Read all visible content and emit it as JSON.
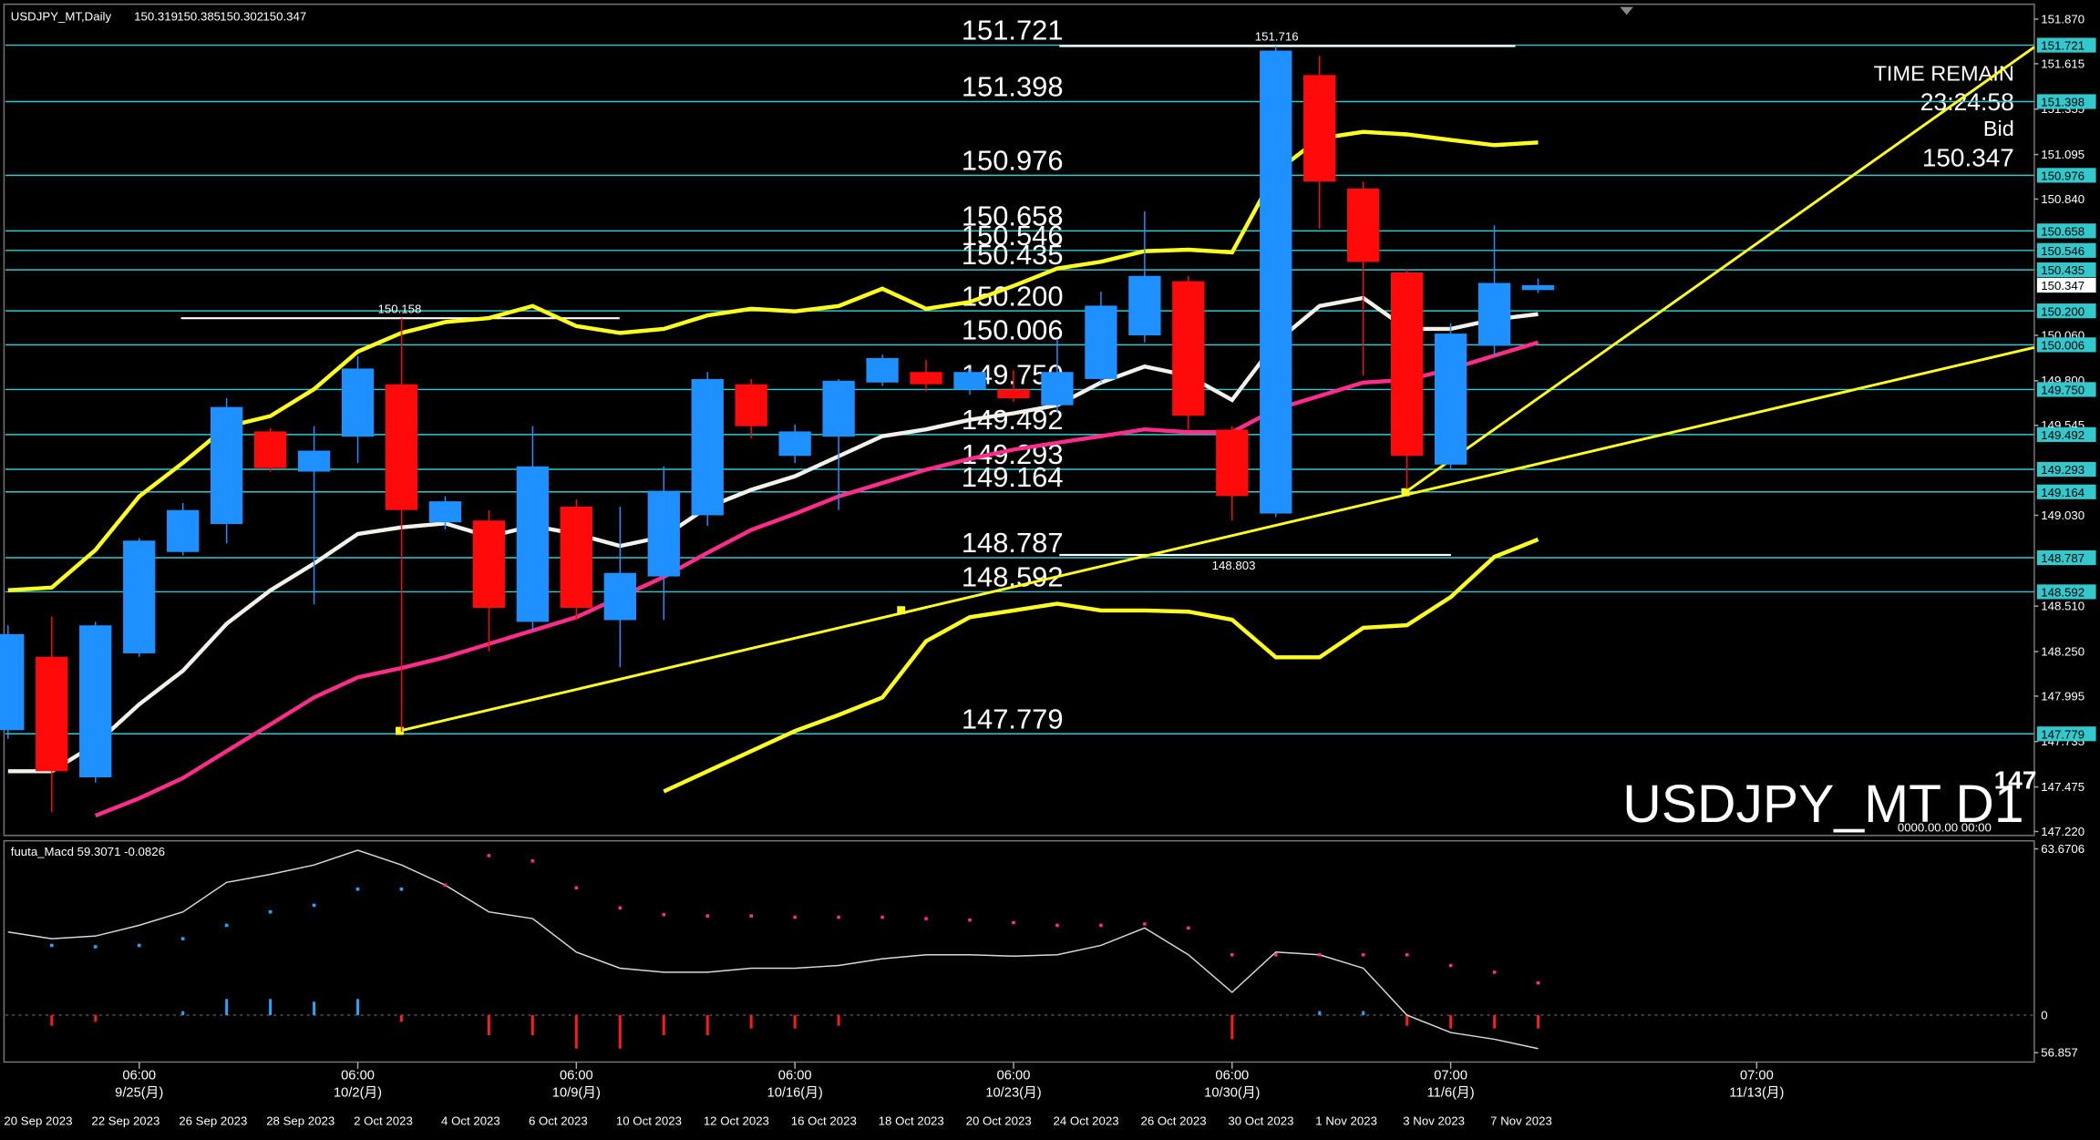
{
  "header": "USDJPY_MT,Daily",
  "info": {
    "time_label": "TIME REMAIN",
    "time_value": "23:24:58",
    "bid_label": "Bid",
    "watermark": "USDJPY_MT D1",
    "corner_number": "147",
    "corner_time": "0000.00.00 00:00"
  },
  "chart_data": [
    {
      "type": "candlestick",
      "categories": [
        "20 Sep 2023",
        null,
        "22 Sep 2023",
        null,
        "26 Sep 2023",
        null,
        "28 Sep 2023",
        null,
        "2 Oct 2023",
        null,
        "4 Oct 2023",
        null,
        "6 Oct 2023",
        null,
        "10 Oct 2023",
        null,
        "12 Oct 2023",
        null,
        "16 Oct 2023",
        null,
        "18 Oct 2023",
        null,
        "20 Oct 2023",
        null,
        "24 Oct 2023",
        null,
        "26 Oct 2023",
        null,
        "30 Oct 2023",
        null,
        "1 Nov 2023",
        null,
        "3 Nov 2023",
        null,
        "7 Nov 2023",
        null
      ],
      "open": [
        147.8,
        148.22,
        147.53,
        148.24,
        148.82,
        148.98,
        149.51,
        149.28,
        149.48,
        149.78,
        148.99,
        149.0,
        148.42,
        149.08,
        148.43,
        148.68,
        149.03,
        149.78,
        149.37,
        149.48,
        149.79,
        149.85,
        149.75,
        149.75,
        149.66,
        149.81,
        150.06,
        150.37,
        149.52,
        149.04,
        151.55,
        150.9,
        150.42,
        149.32,
        150.0,
        150.319
      ],
      "high": [
        148.4,
        148.45,
        148.42,
        148.9,
        149.1,
        149.7,
        149.53,
        149.54,
        149.94,
        150.158,
        149.14,
        149.06,
        149.54,
        149.12,
        149.08,
        149.31,
        149.85,
        149.81,
        149.55,
        149.81,
        149.95,
        149.92,
        149.87,
        149.86,
        150.04,
        150.31,
        150.77,
        150.4,
        149.54,
        151.716,
        151.66,
        150.94,
        150.44,
        150.13,
        150.69,
        150.385
      ],
      "low": [
        147.75,
        147.33,
        147.5,
        148.22,
        148.8,
        148.87,
        149.28,
        148.52,
        149.33,
        147.79,
        148.95,
        148.25,
        148.37,
        148.43,
        148.16,
        148.43,
        148.97,
        149.47,
        149.33,
        149.06,
        149.77,
        149.74,
        149.72,
        149.68,
        149.62,
        149.79,
        150.02,
        149.52,
        149.0,
        149.02,
        150.67,
        149.83,
        149.18,
        149.29,
        149.94,
        150.302
      ],
      "close": [
        148.35,
        147.565,
        148.4,
        148.885,
        149.06,
        149.65,
        149.3,
        149.4,
        149.87,
        149.06,
        149.11,
        148.5,
        149.31,
        148.5,
        148.7,
        149.17,
        149.81,
        149.54,
        149.51,
        149.8,
        149.93,
        149.78,
        149.85,
        149.7,
        149.85,
        150.23,
        150.4,
        149.6,
        149.14,
        151.69,
        150.94,
        150.48,
        149.37,
        150.07,
        150.36,
        150.347
      ],
      "up_color": "#1e90ff",
      "down_color": "#ff0a0a",
      "series": [
        {
          "color": "#f4f0ea",
          "width": 3,
          "values": [
            147.565,
            147.565,
            147.72,
            147.948,
            148.14,
            148.409,
            148.6,
            148.754,
            148.923,
            148.961,
            148.984,
            148.908,
            148.969,
            148.923,
            148.854,
            148.908,
            149.076,
            149.176,
            149.253,
            149.368,
            149.483,
            149.522,
            149.576,
            149.614,
            149.66,
            149.79,
            149.882,
            149.829,
            149.69,
            150.02,
            150.228,
            150.274,
            150.097,
            150.097,
            150.151,
            150.182
          ]
        },
        {
          "color": "#ff2d8a",
          "width": 3,
          "values": [
            null,
            null,
            147.311,
            147.41,
            147.526,
            147.68,
            147.833,
            147.987,
            148.102,
            148.156,
            148.217,
            148.294,
            148.37,
            148.447,
            148.562,
            148.677,
            148.816,
            148.946,
            149.038,
            149.138,
            149.215,
            149.291,
            149.353,
            149.406,
            149.445,
            149.483,
            149.522,
            149.506,
            149.506,
            149.637,
            149.713,
            149.79,
            149.805,
            149.867,
            149.944,
            150.02
          ]
        },
        {
          "color": "#ffff1e",
          "width": 3,
          "values": [
            148.601,
            148.616,
            148.831,
            149.138,
            149.33,
            149.537,
            149.598,
            149.752,
            149.967,
            150.074,
            150.136,
            150.159,
            150.228,
            150.113,
            150.074,
            150.097,
            150.174,
            150.212,
            150.197,
            150.228,
            150.327,
            150.212,
            150.251,
            150.343,
            150.443,
            150.481,
            150.542,
            150.55,
            150.535,
            150.995,
            151.187,
            151.225,
            151.21,
            151.179,
            151.149,
            151.164
          ]
        },
        {
          "color": "#ffff1e",
          "width": 3,
          "values": [
            null,
            null,
            null,
            null,
            null,
            null,
            null,
            null,
            null,
            null,
            null,
            null,
            null,
            null,
            null,
            147.449,
            147.565,
            147.68,
            147.795,
            147.887,
            147.987,
            148.309,
            148.447,
            148.485,
            148.524,
            148.485,
            148.485,
            148.478,
            148.432,
            148.217,
            148.217,
            148.386,
            148.401,
            148.562,
            148.792,
            148.892
          ]
        }
      ],
      "levels": [
        151.721,
        151.398,
        150.976,
        150.658,
        150.546,
        150.435,
        {
          "value": 150.2,
          "label": "150.200"
        },
        150.006,
        {
          "value": 149.75,
          "label": "149.750"
        },
        149.492,
        149.293,
        149.164,
        148.787,
        148.592,
        147.779
      ],
      "level_color": "#32c8cc",
      "reference_lines": [
        150.158,
        151.716,
        148.803
      ],
      "ylim": [
        147.205,
        151.94
      ],
      "yticks": [
        {
          "value": 151.87,
          "label": "151.870"
        },
        151.615,
        151.355,
        151.095,
        {
          "value": 150.84,
          "label": "150.840"
        },
        {
          "value": 150.06,
          "label": "150.060"
        },
        {
          "value": 149.8,
          "label": "149.800"
        },
        149.545,
        {
          "value": 149.03,
          "label": "149.030"
        },
        {
          "value": 148.51,
          "label": "148.510"
        },
        {
          "value": 148.25,
          "label": "148.250"
        },
        147.995,
        147.735,
        147.475,
        {
          "value": 147.22,
          "label": "147.220"
        }
      ],
      "week_markers": [
        {
          "time": "06:00",
          "date": "9/25(月)"
        },
        {
          "time": "06:00",
          "date": "10/2(月)"
        },
        {
          "time": "06:00",
          "date": "10/9(月)"
        },
        {
          "time": "06:00",
          "date": "10/16(月)"
        },
        {
          "time": "06:00",
          "date": "10/23(月)"
        },
        {
          "time": "06:00",
          "date": "10/30(月)"
        },
        {
          "time": "07:00",
          "date": "11/6(月)"
        },
        {
          "time": "07:00",
          "date": "11/13(月)"
        }
      ]
    },
    {
      "type": "macd",
      "title": "fuuta_Macd 59.3071 -0.0826",
      "ylim": [
        56.543,
        63.94
      ],
      "yticks": [
        63.6706,
        56.857
      ],
      "line": {
        "color": "#d8d8d8",
        "values": [
          60.891,
          60.667,
          60.757,
          61.115,
          61.563,
          62.549,
          62.818,
          63.132,
          63.625,
          63.132,
          62.46,
          61.563,
          61.339,
          60.219,
          59.681,
          59.546,
          59.546,
          59.681,
          59.681,
          59.771,
          59.995,
          60.129,
          60.129,
          60.084,
          60.129,
          60.443,
          61.025,
          60.129,
          58.874,
          60.219,
          60.129,
          59.681,
          58.112,
          57.529,
          57.305,
          56.991
        ]
      },
      "signal_up": {
        "color": "#22a8ff",
        "values": [
          null,
          60.443,
          60.398,
          60.443,
          60.667,
          61.115,
          61.563,
          61.787,
          62.325,
          62.325,
          null,
          null,
          null,
          null,
          null,
          null,
          null,
          null,
          null,
          null,
          null,
          null,
          null,
          null,
          null,
          null,
          null,
          null,
          null,
          null,
          null,
          null,
          null,
          null,
          null,
          null
        ]
      },
      "signal_down": {
        "color": "#ff2d8a",
        "values": [
          null,
          null,
          null,
          null,
          null,
          null,
          null,
          null,
          null,
          null,
          62.46,
          63.446,
          63.267,
          62.37,
          61.698,
          61.474,
          61.429,
          61.429,
          61.384,
          61.384,
          61.384,
          61.339,
          61.294,
          61.205,
          61.115,
          61.115,
          61.16,
          61.025,
          60.129,
          60.129,
          60.129,
          60.129,
          60.129,
          59.771,
          59.546,
          59.188
        ]
      },
      "histogram": {
        "up_color": "#22a8ff",
        "down_color": "#ff1a1a",
        "values": [
          0,
          -0.8,
          -0.5,
          0,
          0.3,
          1.2,
          1.2,
          1.0,
          1.2,
          -0.5,
          0,
          -1.5,
          -1.5,
          -2.5,
          -2.5,
          -1.5,
          -1.5,
          -1.0,
          -1.0,
          -0.8,
          0,
          0,
          0,
          0,
          0,
          0,
          0,
          0,
          -1.8,
          0,
          0.3,
          0.3,
          -0.8,
          -1.0,
          -1.0,
          -1.0
        ],
        "ylim": [
          -3.5,
          13
        ],
        "yticks": [
          0
        ]
      }
    }
  ]
}
